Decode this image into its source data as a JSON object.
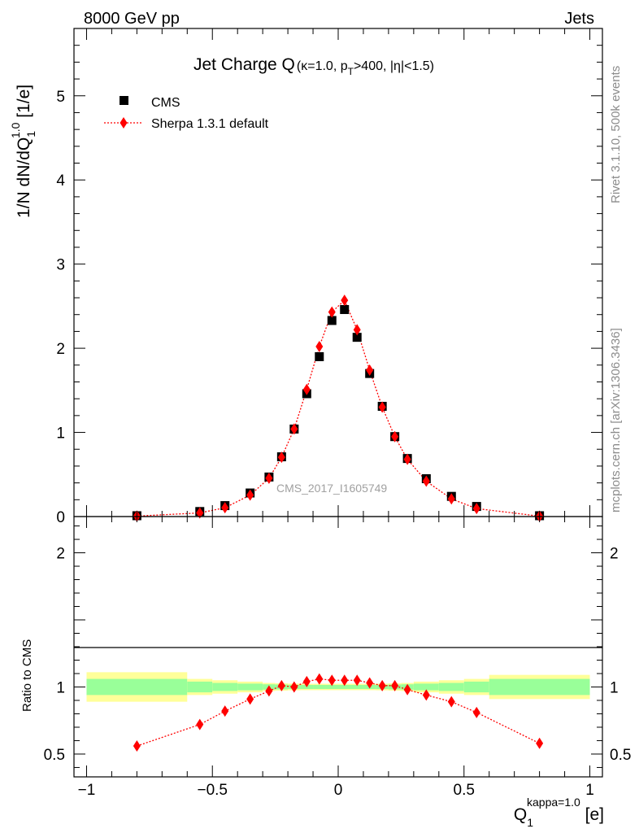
{
  "header": {
    "left": "8000 GeV pp",
    "right": "Jets"
  },
  "side_labels": {
    "rivet": "Rivet 3.1.10,  500k events",
    "mcplots": "mcplots.cern.ch [arXiv:1306.3436]"
  },
  "chart_data": [
    {
      "type": "scatter",
      "title_main": "Jet Charge Q",
      "title_sub": "(κ=1.0, p",
      "title_sub_sub": "T",
      "title_sub_end": ">400, |η|<1.5)",
      "ylabel": "1/N dN/dQ",
      "ylabel_sub": "1",
      "ylabel_sup": "1.0",
      "ylabel_unit": " [1/e]",
      "watermark": "CMS_2017_I1605749",
      "xlim": [
        -1.05,
        1.05
      ],
      "ylim": [
        0,
        5.8
      ],
      "yticks": [
        "0",
        "1",
        "2",
        "3",
        "4",
        "5"
      ],
      "legend_position": "top-left",
      "series": [
        {
          "name": "CMS",
          "marker": "square",
          "color": "#000000",
          "x": [
            -0.8,
            -0.55,
            -0.45,
            -0.35,
            -0.275,
            -0.225,
            -0.175,
            -0.125,
            -0.075,
            -0.025,
            0.025,
            0.075,
            0.125,
            0.175,
            0.225,
            0.275,
            0.35,
            0.45,
            0.55,
            0.8
          ],
          "y": [
            0.01,
            0.06,
            0.13,
            0.28,
            0.47,
            0.71,
            1.04,
            1.46,
            1.9,
            2.33,
            2.46,
            2.13,
            1.7,
            1.31,
            0.95,
            0.69,
            0.45,
            0.24,
            0.12,
            0.01
          ]
        },
        {
          "name": "Sherpa 1.3.1 default",
          "marker": "diamond",
          "color": "#ff0000",
          "x": [
            -0.8,
            -0.55,
            -0.45,
            -0.35,
            -0.275,
            -0.225,
            -0.175,
            -0.125,
            -0.075,
            -0.025,
            0.025,
            0.075,
            0.125,
            0.175,
            0.225,
            0.275,
            0.35,
            0.45,
            0.55,
            0.8
          ],
          "y": [
            0.006,
            0.043,
            0.105,
            0.255,
            0.455,
            0.705,
            1.04,
            1.51,
            2.02,
            2.43,
            2.57,
            2.22,
            1.74,
            1.3,
            0.95,
            0.68,
            0.42,
            0.21,
            0.095,
            0.005
          ]
        }
      ]
    },
    {
      "type": "scatter",
      "ylabel": "Ratio to CMS",
      "xlabel": "Q",
      "xlabel_sub": "1",
      "xlabel_sup": "kappa=1.0",
      "xlabel_unit": " [e]",
      "xlim": [
        -1.05,
        1.05
      ],
      "ylim": [
        0.33,
        2.27
      ],
      "xticks": [
        "−1",
        "−0.5",
        "0",
        "0.5",
        "1"
      ],
      "yticks": [
        "0.5",
        "1",
        "2"
      ],
      "band_colors": {
        "inner": "#99ff99",
        "outer": "#ffff99"
      },
      "uncertainty_bands": {
        "edges": [
          -1.0,
          -0.6,
          -0.5,
          -0.4,
          -0.3,
          -0.25,
          -0.2,
          -0.15,
          -0.1,
          -0.05,
          0.0,
          0.05,
          0.1,
          0.15,
          0.2,
          0.25,
          0.3,
          0.4,
          0.5,
          0.6,
          1.0
        ],
        "inner": [
          0.06,
          0.04,
          0.03,
          0.025,
          0.02,
          0.018,
          0.016,
          0.015,
          0.015,
          0.015,
          0.015,
          0.015,
          0.015,
          0.016,
          0.018,
          0.02,
          0.025,
          0.03,
          0.04,
          0.06
        ],
        "outer": [
          0.11,
          0.06,
          0.05,
          0.04,
          0.03,
          0.027,
          0.025,
          0.024,
          0.024,
          0.024,
          0.024,
          0.024,
          0.024,
          0.025,
          0.027,
          0.03,
          0.04,
          0.05,
          0.06,
          0.09
        ]
      },
      "series": [
        {
          "name": "Sherpa 1.3.1 default",
          "marker": "diamond",
          "color": "#ff0000",
          "x": [
            -0.8,
            -0.55,
            -0.45,
            -0.35,
            -0.275,
            -0.225,
            -0.175,
            -0.125,
            -0.075,
            -0.025,
            0.025,
            0.075,
            0.125,
            0.175,
            0.225,
            0.275,
            0.35,
            0.45,
            0.55,
            0.8
          ],
          "y": [
            0.56,
            0.72,
            0.82,
            0.91,
            0.97,
            1.01,
            1.0,
            1.04,
            1.06,
            1.05,
            1.05,
            1.05,
            1.03,
            1.01,
            1.01,
            0.98,
            0.94,
            0.89,
            0.81,
            0.58
          ],
          "err": [
            0.03,
            0.02,
            0.015,
            0.012,
            0.01,
            0.01,
            0.01,
            0.01,
            0.01,
            0.01,
            0.01,
            0.01,
            0.01,
            0.01,
            0.01,
            0.01,
            0.012,
            0.015,
            0.02,
            0.02
          ]
        }
      ]
    }
  ]
}
